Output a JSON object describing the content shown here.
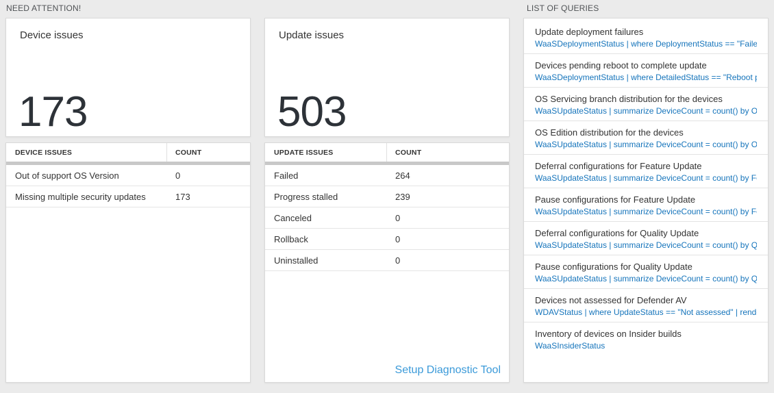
{
  "colors": {
    "page_background": "#ebebeb",
    "query_link_blue": "#1574bb",
    "setup_link_blue": "#3b9ad9",
    "big_number_color": "#2d3238",
    "header_band_gray": "#c8c8c8"
  },
  "attention": {
    "header": "NEED ATTENTION!",
    "device_card": {
      "title": "Device issues",
      "big_number": "173"
    },
    "device_table": {
      "columns": [
        "DEVICE ISSUES",
        "COUNT"
      ],
      "rows": [
        {
          "label": "Out of support OS Version",
          "count": "0"
        },
        {
          "label": "Missing multiple security updates",
          "count": "173"
        }
      ]
    },
    "update_card": {
      "title": "Update issues",
      "big_number": "503"
    },
    "update_table": {
      "columns": [
        "UPDATE ISSUES",
        "COUNT"
      ],
      "rows": [
        {
          "label": "Failed",
          "count": "264"
        },
        {
          "label": "Progress stalled",
          "count": "239"
        },
        {
          "label": "Canceled",
          "count": "0"
        },
        {
          "label": "Rollback",
          "count": "0"
        },
        {
          "label": "Uninstalled",
          "count": "0"
        }
      ]
    },
    "setup_link": "Setup Diagnostic Tool"
  },
  "queries": {
    "header": "LIST OF QUERIES",
    "items": [
      {
        "title": "Update deployment failures",
        "query": "WaaSDeploymentStatus | where DeploymentStatus == \"Failed\" |..."
      },
      {
        "title": "Devices pending reboot to complete update",
        "query": "WaaSDeploymentStatus | where DetailedStatus == \"Reboot pend..."
      },
      {
        "title": "OS Servicing branch distribution for the devices",
        "query": "WaaSUpdateStatus | summarize DeviceCount = count() by OSSer..."
      },
      {
        "title": "OS Edition distribution for the devices",
        "query": "WaaSUpdateStatus | summarize DeviceCount = count() by OSEdit..."
      },
      {
        "title": "Deferral configurations for Feature Update",
        "query": "WaaSUpdateStatus | summarize DeviceCount = count() by Featur..."
      },
      {
        "title": "Pause configurations for Feature Update",
        "query": "WaaSUpdateStatus | summarize DeviceCount = count() by Featur..."
      },
      {
        "title": "Deferral configurations for Quality Update",
        "query": "WaaSUpdateStatus | summarize DeviceCount = count() by Qualit..."
      },
      {
        "title": "Pause configurations for Quality Update",
        "query": "WaaSUpdateStatus | summarize DeviceCount = count() by Qualit..."
      },
      {
        "title": "Devices not assessed for Defender AV",
        "query": "WDAVStatus | where UpdateStatus == \"Not assessed\" | render ta..."
      },
      {
        "title": "Inventory of devices on Insider builds",
        "query": "WaaSInsiderStatus"
      }
    ]
  }
}
